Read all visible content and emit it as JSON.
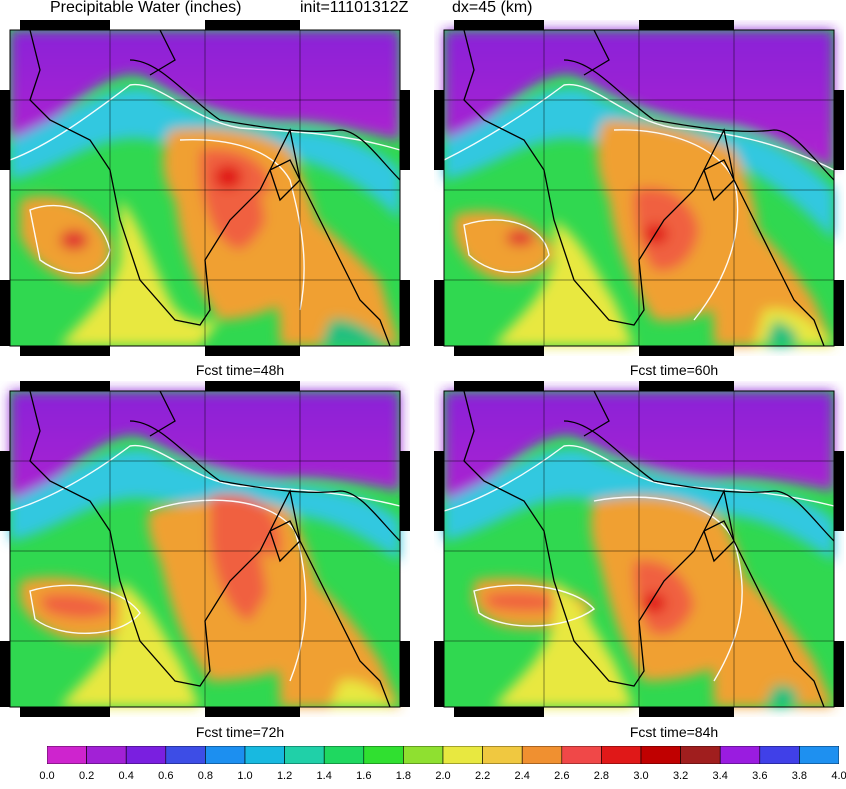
{
  "header": {
    "title": "Precipitable Water (inches)",
    "init": "init=11101312Z",
    "resolution": "dx=45 (km)"
  },
  "panels": [
    {
      "caption": "Fcst time=48h"
    },
    {
      "caption": "Fcst time=60h"
    },
    {
      "caption": "Fcst time=72h"
    },
    {
      "caption": "Fcst time=84h"
    }
  ],
  "colorbar": {
    "labels": [
      "0.0",
      "0.2",
      "0.4",
      "0.6",
      "0.8",
      "1.0",
      "1.2",
      "1.4",
      "1.6",
      "1.8",
      "2.0",
      "2.2",
      "2.4",
      "2.6",
      "2.8",
      "3.0",
      "3.2",
      "3.4",
      "3.6",
      "3.8",
      "4.0"
    ],
    "colors": [
      "#ce24ce",
      "#a221d6",
      "#7a1fe0",
      "#3d4de6",
      "#1c8ff0",
      "#18b9e0",
      "#20d0a8",
      "#1fd860",
      "#30e030",
      "#8fe030",
      "#e8e840",
      "#f0c840",
      "#f09030",
      "#f04848",
      "#e01818",
      "#c00000",
      "#a01e1e",
      "#9a1ce0",
      "#4040e8",
      "#1e90f0"
    ]
  }
}
